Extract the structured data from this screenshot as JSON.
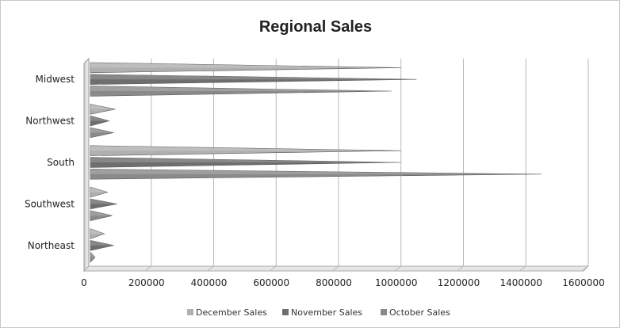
{
  "chart_data": {
    "type": "bar",
    "orientation": "horizontal",
    "title": "Regional Sales",
    "xlabel": "",
    "ylabel": "",
    "xlim": [
      0,
      1600000
    ],
    "x_ticks": [
      0,
      200000,
      400000,
      600000,
      800000,
      1000000,
      1200000,
      1400000,
      1600000
    ],
    "x_tick_labels": [
      "0",
      "200000",
      "400000",
      "600000",
      "800000",
      "1000000",
      "1200000",
      "1400000",
      "1600000"
    ],
    "grid": true,
    "legend_position": "bottom",
    "categories": [
      "Midwest",
      "Northwest",
      "South",
      "Southwest",
      "Northeast"
    ],
    "series": [
      {
        "name": "December Sales",
        "color": "#b0b0b0",
        "values": [
          1000000,
          85000,
          1000000,
          60000,
          50000
        ]
      },
      {
        "name": "November Sales",
        "color": "#6e6e6e",
        "values": [
          1050000,
          65000,
          1000000,
          90000,
          80000
        ]
      },
      {
        "name": "October Sales",
        "color": "#8a8a8a",
        "values": [
          970000,
          80000,
          1450000,
          75000,
          20000
        ]
      }
    ]
  }
}
